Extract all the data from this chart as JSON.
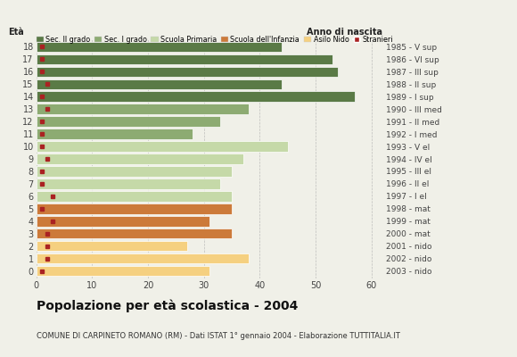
{
  "ages": [
    18,
    17,
    16,
    15,
    14,
    13,
    12,
    11,
    10,
    9,
    8,
    7,
    6,
    5,
    4,
    3,
    2,
    1,
    0
  ],
  "right_labels": [
    "1985 - V sup",
    "1986 - VI sup",
    "1987 - III sup",
    "1988 - II sup",
    "1989 - I sup",
    "1990 - III med",
    "1991 - II med",
    "1992 - I med",
    "1993 - V el",
    "1994 - IV el",
    "1995 - III el",
    "1996 - II el",
    "1997 - I el",
    "1998 - mat",
    "1999 - mat",
    "2000 - mat",
    "2001 - nido",
    "2002 - nido",
    "2003 - nido"
  ],
  "bar_values": [
    44,
    53,
    54,
    44,
    57,
    38,
    33,
    28,
    45,
    37,
    35,
    33,
    35,
    35,
    31,
    35,
    27,
    38,
    31
  ],
  "stranger_values": [
    1,
    1,
    1,
    2,
    1,
    2,
    1,
    1,
    1,
    2,
    1,
    1,
    3,
    1,
    3,
    2,
    2,
    2,
    1
  ],
  "categories": [
    "Sec. II grado",
    "Sec. I grado",
    "Scuola Primaria",
    "Scuola dell'Infanzia",
    "Asilo Nido"
  ],
  "category_ages": {
    "Sec. II grado": [
      14,
      15,
      16,
      17,
      18
    ],
    "Sec. I grado": [
      11,
      12,
      13
    ],
    "Scuola Primaria": [
      6,
      7,
      8,
      9,
      10
    ],
    "Scuola dell'Infanzia": [
      3,
      4,
      5
    ],
    "Asilo Nido": [
      0,
      1,
      2
    ]
  },
  "colors": {
    "Sec. II grado": "#5a7a46",
    "Sec. I grado": "#8dab72",
    "Scuola Primaria": "#c5d9a8",
    "Scuola dell'Infanzia": "#cc7a3a",
    "Asilo Nido": "#f5d080",
    "Stranieri": "#aa2222"
  },
  "title": "Popolazione per età scolastica - 2004",
  "subtitle": "COMUNE DI CARPINETO ROMANO (RM) - Dati ISTAT 1° gennaio 2004 - Elaborazione TUTTITALIA.IT",
  "label_eta": "Età",
  "label_anno": "Anno di nascita",
  "xlim": [
    0,
    62
  ],
  "xticks": [
    0,
    10,
    20,
    30,
    40,
    50,
    60
  ],
  "background_color": "#f0f0e8",
  "bar_height": 0.82,
  "grid_color": "#aaaaaa"
}
